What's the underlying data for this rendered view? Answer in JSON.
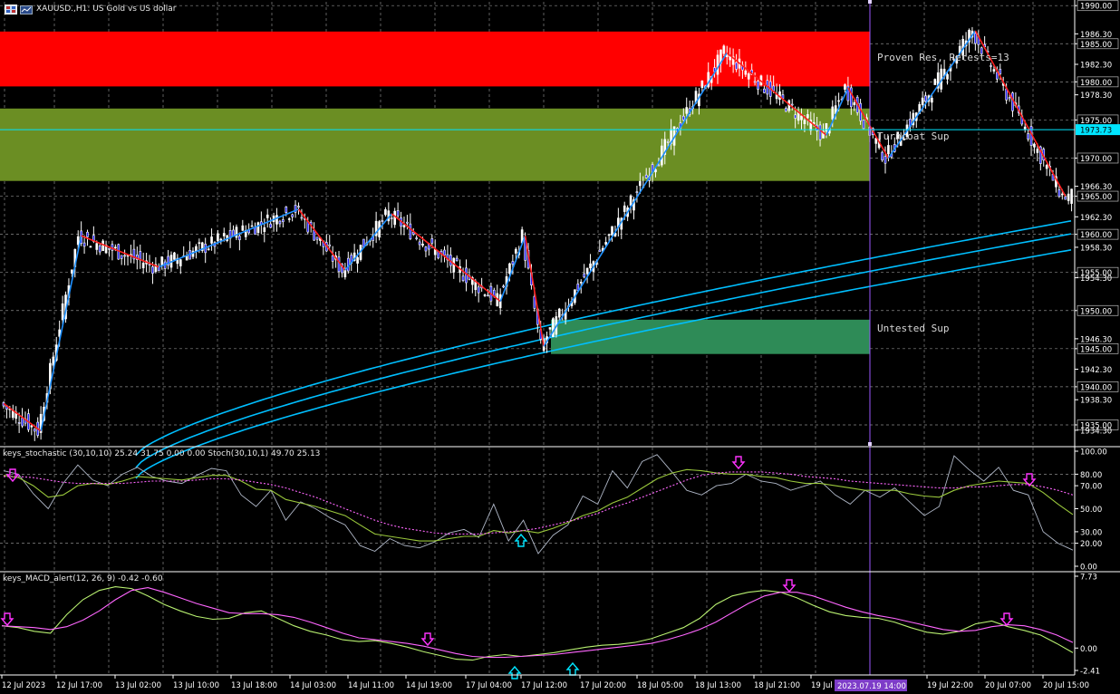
{
  "header": {
    "symbol_line": "XAUUSD.,H1: US Gold vs US dollar"
  },
  "colors": {
    "background": "#000000",
    "resistance_zone": "#ff0000",
    "turncoat_zone": "#6b8e23",
    "untested_zone": "#2e8b57",
    "zigzag_up": "#1e90ff",
    "zigzag_down": "#ff2020",
    "ma": "#00bfff",
    "bull_candle": "#ffffff",
    "bear_candle": "#2222ff",
    "current_price": "#00e5ff",
    "vline": "#9b59ff",
    "stoch_main": "#b0b8c8",
    "stoch_signal": "#9ac83c",
    "macd_main": "#b8f070",
    "macd_signal": "#ff66ff",
    "arrow_down": "#ff33ff",
    "arrow_up": "#00e5ff"
  },
  "zones": {
    "proven_res": {
      "label": "Proven Res, Retests=13",
      "from": 1979.4,
      "to": 1986.6
    },
    "turncoat_sup": {
      "label": "Turncoat Sup",
      "from": 1967.0,
      "to": 1976.5
    },
    "untested_sup": {
      "label": "Untested Sup",
      "from": 1944.3,
      "to": 1948.8
    }
  },
  "current_price": {
    "value": 1973.73,
    "label": "1973.73"
  },
  "vline_label": "2023.07.19 14:00",
  "indicators": {
    "stoch_title": "keys_stochastic (30,10,10) 25.24 31.75 0.00 0.00 Stoch(30,10,1) 49.70 25.13",
    "macd_title": "keys_MACD_alert(12, 26, 9) -0.42 -0.60"
  },
  "chart_data": [
    {
      "type": "candlestick",
      "title": "XAUUSD.,H1: US Gold vs US dollar",
      "ylim": [
        1932.5,
        1990.5
      ],
      "price_ticks": [
        "1990.00",
        "1986.30",
        "1985.00",
        "1982.30",
        "1980.00",
        "1978.30",
        "1975.00",
        "1970.00",
        "1966.30",
        "1965.00",
        "1962.30",
        "1960.00",
        "1958.30",
        "1955.00",
        "1954.30",
        "1950.00",
        "1946.30",
        "1945.00",
        "1942.30",
        "1940.00",
        "1938.30",
        "1935.00",
        "1934.30"
      ],
      "highlighted_ticks": [
        "1990.00",
        "1985.00",
        "1980.00",
        "1975.00",
        "1970.00",
        "1965.00",
        "1960.00",
        "1955.00",
        "1950.00",
        "1945.00",
        "1940.00",
        "1935.00"
      ],
      "time_labels": [
        "12 Jul 2023",
        "12 Jul 17:00",
        "13 Jul 02:00",
        "13 Jul 10:00",
        "13 Jul 18:00",
        "14 Jul 03:00",
        "14 Jul 11:00",
        "14 Jul 19:00",
        "17 Jul 04:00",
        "17 Jul 12:00",
        "17 Jul 20:00",
        "18 Jul 05:00",
        "18 Jul 13:00",
        "18 Jul 21:00",
        "19 Jul 06:00",
        "19 Jul 22:00",
        "20 Jul 07:00",
        "20 Jul 15:00"
      ],
      "zigzag": [
        {
          "i": 0,
          "p": 1937.8
        },
        {
          "i": 12,
          "p": 1934.2
        },
        {
          "i": 25,
          "p": 1959.8
        },
        {
          "i": 50,
          "p": 1955.7
        },
        {
          "i": 95,
          "p": 1963.3
        },
        {
          "i": 110,
          "p": 1955.3
        },
        {
          "i": 125,
          "p": 1962.7
        },
        {
          "i": 160,
          "p": 1951.2
        },
        {
          "i": 168,
          "p": 1959.8
        },
        {
          "i": 174,
          "p": 1945.3
        },
        {
          "i": 233,
          "p": 1983.8
        },
        {
          "i": 265,
          "p": 1973.0
        },
        {
          "i": 272,
          "p": 1979.2
        },
        {
          "i": 285,
          "p": 1970.0
        },
        {
          "i": 313,
          "p": 1986.7
        },
        {
          "i": 342,
          "p": 1965.0
        }
      ],
      "ma_bands": [
        {
          "name": "",
          "start": 1931.0,
          "end": 1961.8
        },
        {
          "name": "",
          "start": 1929.4,
          "end": 1960.1
        },
        {
          "name": "",
          "start": 1928.0,
          "end": 1958.0
        }
      ]
    },
    {
      "type": "line",
      "title": "keys_stochastic (30,10,10) 25.24 31.75 0.00 0.00 Stoch(30,10,1) 49.70 25.13",
      "ylim": [
        0,
        100
      ],
      "ticks": [
        "100.00",
        "80.00",
        "70.00",
        "50.00",
        "30.00",
        "20.00",
        "0.00"
      ],
      "levels": [
        80,
        20
      ],
      "series": [
        {
          "name": "",
          "values": [
            83,
            80,
            63,
            50,
            72,
            88,
            75,
            70,
            80,
            86,
            78,
            74,
            72,
            79,
            85,
            83,
            62,
            52,
            66,
            40,
            56,
            50,
            42,
            36,
            18,
            13,
            24,
            18,
            16,
            21,
            29,
            32,
            25,
            54,
            22,
            40,
            11,
            27,
            36,
            61,
            54,
            83,
            68,
            91,
            97,
            82,
            66,
            62,
            70,
            72,
            80,
            74,
            72,
            66,
            70,
            74,
            62,
            54,
            66,
            60,
            68,
            56,
            44,
            52,
            96,
            84,
            74,
            86,
            66,
            62,
            30,
            20,
            14
          ]
        },
        {
          "name": "",
          "values": [
            79,
            77,
            70,
            60,
            62,
            70,
            72,
            71,
            74,
            78,
            77,
            76,
            75,
            77,
            79,
            79,
            74,
            67,
            66,
            58,
            55,
            52,
            48,
            44,
            36,
            28,
            26,
            24,
            22,
            22,
            24,
            26,
            26,
            31,
            29,
            31,
            29,
            33,
            38,
            44,
            48,
            55,
            60,
            68,
            76,
            81,
            84,
            83,
            81,
            80,
            80,
            78,
            77,
            74,
            72,
            72,
            70,
            68,
            66,
            66,
            66,
            63,
            61,
            60,
            66,
            70,
            72,
            74,
            73,
            72,
            64,
            54,
            45
          ]
        },
        {
          "name": "",
          "values": [
            78,
            78,
            77,
            75,
            73,
            72,
            72,
            72,
            72,
            73,
            74,
            74,
            74,
            75,
            76,
            76,
            75,
            73,
            71,
            68,
            64,
            60,
            55,
            50,
            45,
            40,
            36,
            33,
            31,
            29,
            28,
            28,
            28,
            29,
            30,
            31,
            33,
            36,
            39,
            42,
            46,
            51,
            55,
            60,
            65,
            70,
            75,
            79,
            81,
            82,
            82,
            82,
            81,
            80,
            78,
            77,
            76,
            74,
            73,
            72,
            71,
            70,
            69,
            68,
            68,
            69,
            69,
            70,
            71,
            71,
            69,
            66,
            62
          ]
        }
      ],
      "arrows": [
        {
          "x": 14,
          "dir": "down"
        },
        {
          "x": 575,
          "dir": "up"
        },
        {
          "x": 815,
          "dir": "down"
        },
        {
          "x": 1136,
          "dir": "down"
        }
      ]
    },
    {
      "type": "line",
      "title": "keys_MACD_alert(12, 26, 9) -0.42 -0.60",
      "ylim": [
        -2.41,
        7.73
      ],
      "ticks": [
        "7.73",
        "0.00",
        "-2.41"
      ],
      "series": [
        {
          "name": "",
          "values": [
            2.4,
            2.2,
            1.8,
            1.6,
            3.6,
            5.2,
            6.2,
            6.6,
            6.4,
            5.6,
            4.7,
            4.0,
            3.4,
            3.1,
            3.2,
            3.8,
            4.0,
            3.2,
            2.4,
            1.8,
            1.4,
            0.9,
            0.7,
            0.8,
            0.5,
            0.1,
            -0.4,
            -0.8,
            -1.2,
            -1.3,
            -0.9,
            -0.7,
            -0.9,
            -0.7,
            -0.5,
            -0.2,
            0.1,
            0.3,
            0.4,
            0.6,
            1.0,
            1.6,
            2.2,
            3.2,
            4.7,
            5.6,
            6.0,
            6.2,
            6.0,
            5.4,
            4.6,
            3.9,
            3.5,
            3.3,
            3.2,
            2.8,
            2.2,
            1.7,
            1.5,
            1.8,
            2.6,
            2.9,
            2.3,
            1.9,
            1.4,
            0.5,
            -0.5
          ]
        },
        {
          "name": "",
          "values": [
            2.4,
            2.3,
            2.2,
            2.0,
            2.3,
            3.0,
            4.0,
            5.2,
            6.2,
            6.5,
            6.0,
            5.4,
            4.8,
            4.3,
            3.8,
            3.7,
            3.7,
            3.6,
            3.3,
            2.8,
            2.2,
            1.6,
            1.1,
            0.9,
            0.7,
            0.5,
            0.2,
            -0.2,
            -0.6,
            -0.9,
            -1.0,
            -1.0,
            -0.9,
            -0.8,
            -0.7,
            -0.5,
            -0.3,
            -0.1,
            0.1,
            0.3,
            0.5,
            0.9,
            1.4,
            2.0,
            2.8,
            3.8,
            4.8,
            5.6,
            6.0,
            6.0,
            5.6,
            5.0,
            4.4,
            3.9,
            3.5,
            3.2,
            2.8,
            2.4,
            2.0,
            1.8,
            1.9,
            2.3,
            2.5,
            2.4,
            2.0,
            1.4,
            0.6
          ]
        }
      ],
      "arrows": [
        {
          "x": 8,
          "dir": "down"
        },
        {
          "x": 472,
          "dir": "down"
        },
        {
          "x": 568,
          "dir": "up"
        },
        {
          "x": 632,
          "dir": "up"
        },
        {
          "x": 871,
          "dir": "down"
        },
        {
          "x": 1111,
          "dir": "down"
        }
      ]
    }
  ]
}
